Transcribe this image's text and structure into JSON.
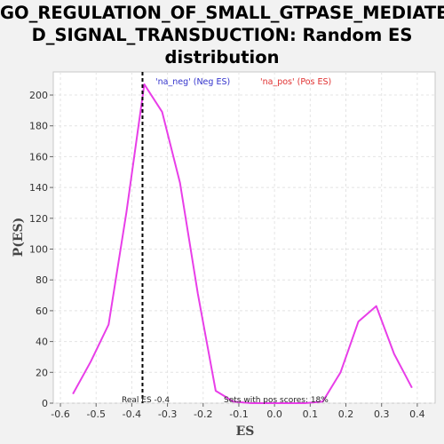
{
  "chart_data": {
    "type": "line",
    "title_lines": [
      "GO_REGULATION_OF_SMALL_GTPASE_MEDIATE",
      "D_SIGNAL_TRANSDUCTION: Random ES",
      "distribution"
    ],
    "xlabel": "ES",
    "ylabel": "P(ES)",
    "xlim": [
      -0.62,
      0.45
    ],
    "ylim": [
      0,
      215
    ],
    "x_ticks": [
      -0.6,
      -0.5,
      -0.4,
      -0.3,
      -0.2,
      -0.1,
      0.0,
      0.1,
      0.2,
      0.3,
      0.4
    ],
    "y_ticks": [
      0,
      20,
      40,
      60,
      80,
      100,
      120,
      140,
      160,
      180,
      200
    ],
    "grid": true,
    "legend": [
      {
        "label": "'na_neg' (Neg ES)",
        "color": "#3333cc"
      },
      {
        "label": "'na_pos' (Pos ES)",
        "color": "#e03030"
      }
    ],
    "series": [
      {
        "color": "#e83ee8",
        "x": [
          -0.565,
          -0.515,
          -0.465,
          -0.415,
          -0.365,
          -0.315,
          -0.265,
          -0.215,
          -0.165,
          -0.115,
          -0.065,
          -0.015,
          0.035,
          0.085,
          0.135,
          0.185,
          0.235,
          0.285,
          0.335,
          0.385
        ],
        "y": [
          6,
          27,
          51,
          124,
          207,
          189,
          143,
          71,
          8,
          1,
          0,
          0,
          0,
          0,
          1,
          20,
          53,
          63,
          32,
          10
        ]
      }
    ],
    "real_es": -0.37,
    "annotations": {
      "real_es_label": "Real ES -0.4",
      "pos_scores_label": "Sets with pos scores: 18%"
    }
  }
}
